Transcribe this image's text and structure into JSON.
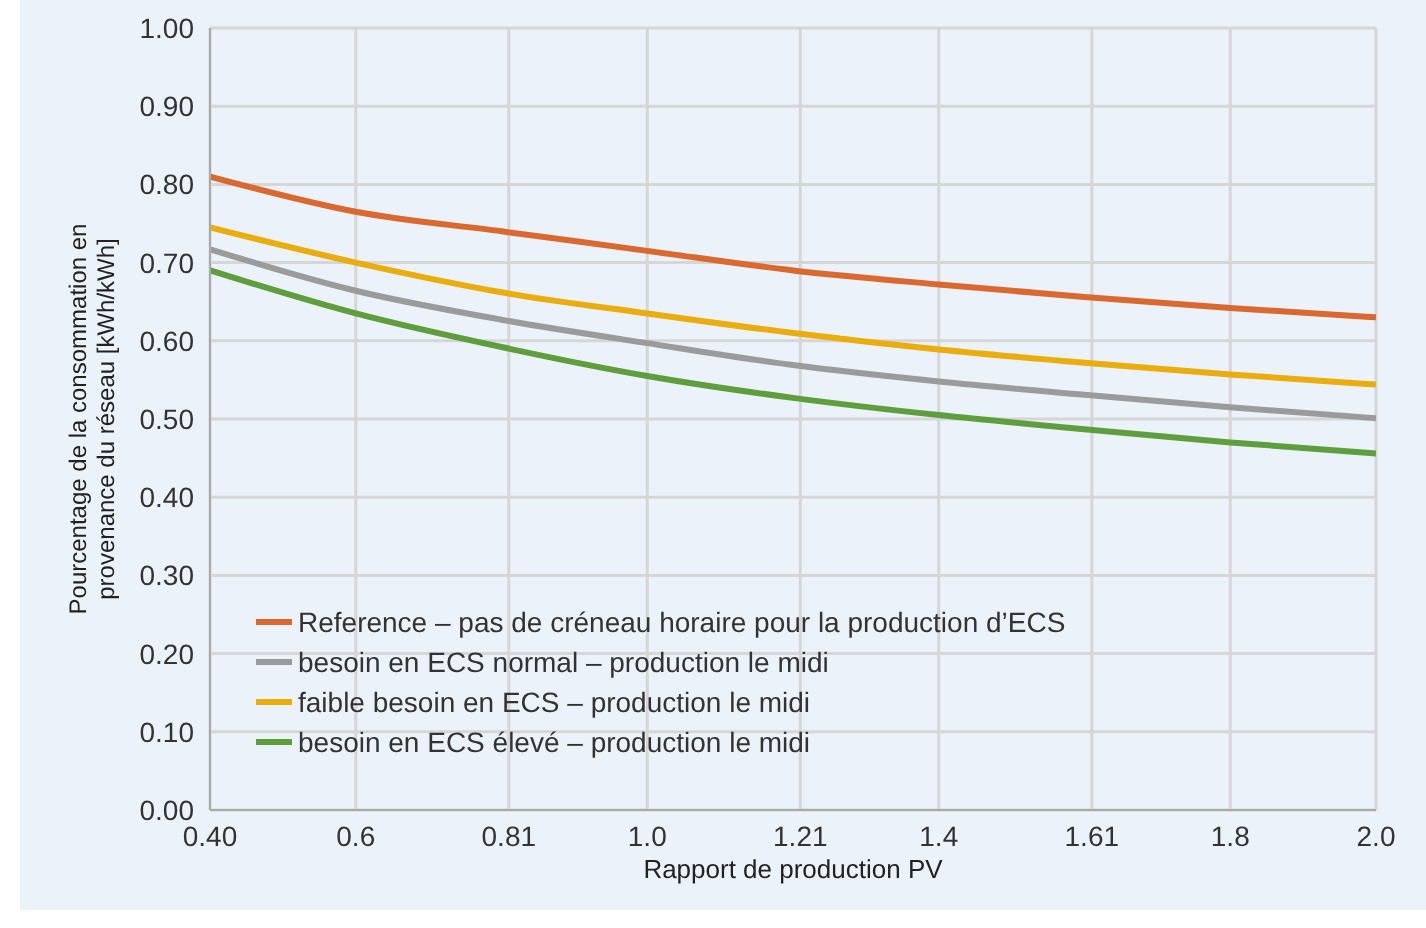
{
  "chart_data": {
    "type": "line",
    "xlabel": "Rapport de production PV",
    "ylabel": "Pourcentage de la consommation en provenance du réseau  [kWh/kWh]",
    "x": [
      0.4,
      0.6,
      0.8,
      1.0,
      1.2,
      1.4,
      1.6,
      1.8,
      2.0
    ],
    "xlim": [
      0.4,
      2.0
    ],
    "xticks": [
      {
        "value": 0.4,
        "label": "0.40"
      },
      {
        "value": 0.6,
        "label": "0.6"
      },
      0.81,
      {
        "value": 1.0,
        "label": "1.0"
      },
      1.21,
      {
        "value": 1.4,
        "label": "1.4"
      },
      1.61,
      {
        "value": 1.8,
        "label": "1.8"
      },
      {
        "value": 2.0,
        "label": "2.0"
      }
    ],
    "ylim": [
      0,
      1
    ],
    "yticks": [
      {
        "value": 0,
        "label": "0.00"
      },
      {
        "value": 0.1,
        "label": "0.10"
      },
      {
        "value": 0.2,
        "label": "0.20"
      },
      {
        "value": 0.3,
        "label": "0.30"
      },
      {
        "value": 0.4,
        "label": "0.40"
      },
      {
        "value": 0.5,
        "label": "0.50"
      },
      {
        "value": 0.6,
        "label": "0.60"
      },
      {
        "value": 0.7,
        "label": "0.70"
      },
      {
        "value": 0.8,
        "label": "0.80"
      },
      {
        "value": 0.9,
        "label": "0.90"
      },
      {
        "value": 1.0,
        "label": "1.00"
      }
    ],
    "series": [
      {
        "name": "Reference – pas de créneau horaire pour la production d’ECS",
        "color": "#d9692e",
        "values": [
          0.81,
          0.765,
          0.74,
          0.715,
          0.69,
          0.672,
          0.656,
          0.642,
          0.63
        ]
      },
      {
        "name": "besoin en ECS normal – production le midi",
        "color": "#9b9b9b",
        "values": [
          0.717,
          0.664,
          0.627,
          0.597,
          0.569,
          0.548,
          0.531,
          0.515,
          0.501
        ]
      },
      {
        "name": "faible besoin en ECS – production le midi",
        "color": "#e9ad0c",
        "values": [
          0.745,
          0.7,
          0.662,
          0.635,
          0.61,
          0.589,
          0.572,
          0.557,
          0.544
        ]
      },
      {
        "name": "besoin en ECS élevé – production le midi",
        "color": "#5e9e3c",
        "values": [
          0.69,
          0.635,
          0.592,
          0.555,
          0.527,
          0.505,
          0.487,
          0.47,
          0.456
        ]
      }
    ],
    "grid": true,
    "legend": "bottom left",
    "marker": "none",
    "line_style": "solid"
  }
}
